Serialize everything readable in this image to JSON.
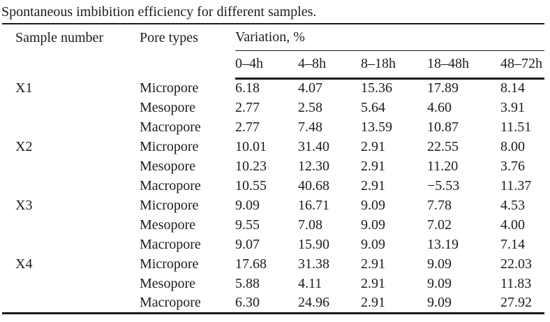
{
  "title": "Spontaneous imbibition efficiency for different samples.",
  "table": {
    "col1_header": "Sample number",
    "col2_header": "Pore types",
    "group_header": "Variation, %",
    "time_headers": [
      "0–4h",
      "4–8h",
      "8–18h",
      "18–48h",
      "48–72h"
    ],
    "rows": [
      {
        "sample": "X1",
        "pore": "Micropore",
        "values": [
          "6.18",
          "4.07",
          "15.36",
          "17.89",
          "8.14"
        ]
      },
      {
        "sample": "",
        "pore": "Mesopore",
        "values": [
          "2.77",
          "2.58",
          "5.64",
          "4.60",
          "3.91"
        ]
      },
      {
        "sample": "",
        "pore": "Macropore",
        "values": [
          "2.77",
          "7.48",
          "13.59",
          "10.87",
          "11.51"
        ]
      },
      {
        "sample": "X2",
        "pore": "Micropore",
        "values": [
          "10.01",
          "31.40",
          "2.91",
          "22.55",
          "8.00"
        ]
      },
      {
        "sample": "",
        "pore": "Mesopore",
        "values": [
          "10.23",
          "12.30",
          "2.91",
          "11.20",
          "3.76"
        ]
      },
      {
        "sample": "",
        "pore": "Macropore",
        "values": [
          "10.55",
          "40.68",
          "2.91",
          "−5.53",
          "11.37"
        ]
      },
      {
        "sample": "X3",
        "pore": "Micropore",
        "values": [
          "9.09",
          "16.71",
          "9.09",
          "7.78",
          "4.53"
        ]
      },
      {
        "sample": "",
        "pore": "Mesopore",
        "values": [
          "9.55",
          "7.08",
          "9.09",
          "7.02",
          "4.00"
        ]
      },
      {
        "sample": "",
        "pore": "Macropore",
        "values": [
          "9.07",
          "15.90",
          "9.09",
          "13.19",
          "7.14"
        ]
      },
      {
        "sample": "X4",
        "pore": "Micropore",
        "values": [
          "17.68",
          "31.38",
          "2.91",
          "9.09",
          "22.03"
        ]
      },
      {
        "sample": "",
        "pore": "Mesopore",
        "values": [
          "5.88",
          "4.11",
          "2.91",
          "9.09",
          "11.83"
        ]
      },
      {
        "sample": "",
        "pore": "Macropore",
        "values": [
          "6.30",
          "24.96",
          "2.91",
          "9.09",
          "27.92"
        ]
      }
    ]
  },
  "colors": {
    "text": "#1c1c1c",
    "rule": "#1a1a1a",
    "background": "#ffffff"
  }
}
